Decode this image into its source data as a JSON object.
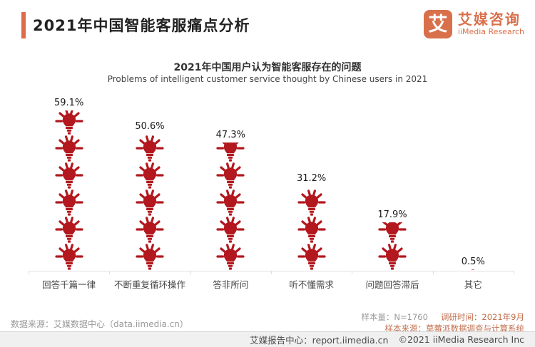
{
  "header": {
    "title": "2021年中国智能客服痛点分析",
    "logo": {
      "symbol": "艾",
      "name_cn": "艾媒咨询",
      "name_en": "iiMedia Research"
    }
  },
  "chart_data": {
    "type": "bar",
    "style": "pictogram-lightbulb-columns",
    "title": "2021年中国用户认为智能客服存在的问题",
    "subtitle": "Problems of intelligent customer service thought by Chinese users in 2021",
    "categories": [
      "回答千篇一律",
      "不断重复循环操作",
      "答非所问",
      "听不懂需求",
      "问题回答滞后",
      "其它"
    ],
    "values": [
      59.1,
      50.6,
      47.3,
      31.2,
      17.9,
      0.5
    ],
    "value_labels": [
      "59.1%",
      "50.6%",
      "47.3%",
      "31.2%",
      "17.9%",
      "0.5%"
    ],
    "unit_per_icon_percent": 10,
    "ylim": [
      0,
      62
    ],
    "grid": false,
    "legend": "none",
    "bar_color": "#B2181E"
  },
  "footer": {
    "source_left": "数据来源：艾媒数据中心（data.iimedia.cn）",
    "sample_size": "样本量：N=1760",
    "survey_time": "调研时间：2021年9月",
    "sample_source": "样本来源：草莓派数据调查与计算系统",
    "report_center": "艾媒报告中心：report.iimedia.cn",
    "copyright": "©2021  iiMedia Research Inc"
  },
  "colors": {
    "accent_orange": "#DE6C48",
    "logo_orange": "#D9704C",
    "bulb_red": "#B2181E",
    "footer_orange": "#C2704E"
  }
}
